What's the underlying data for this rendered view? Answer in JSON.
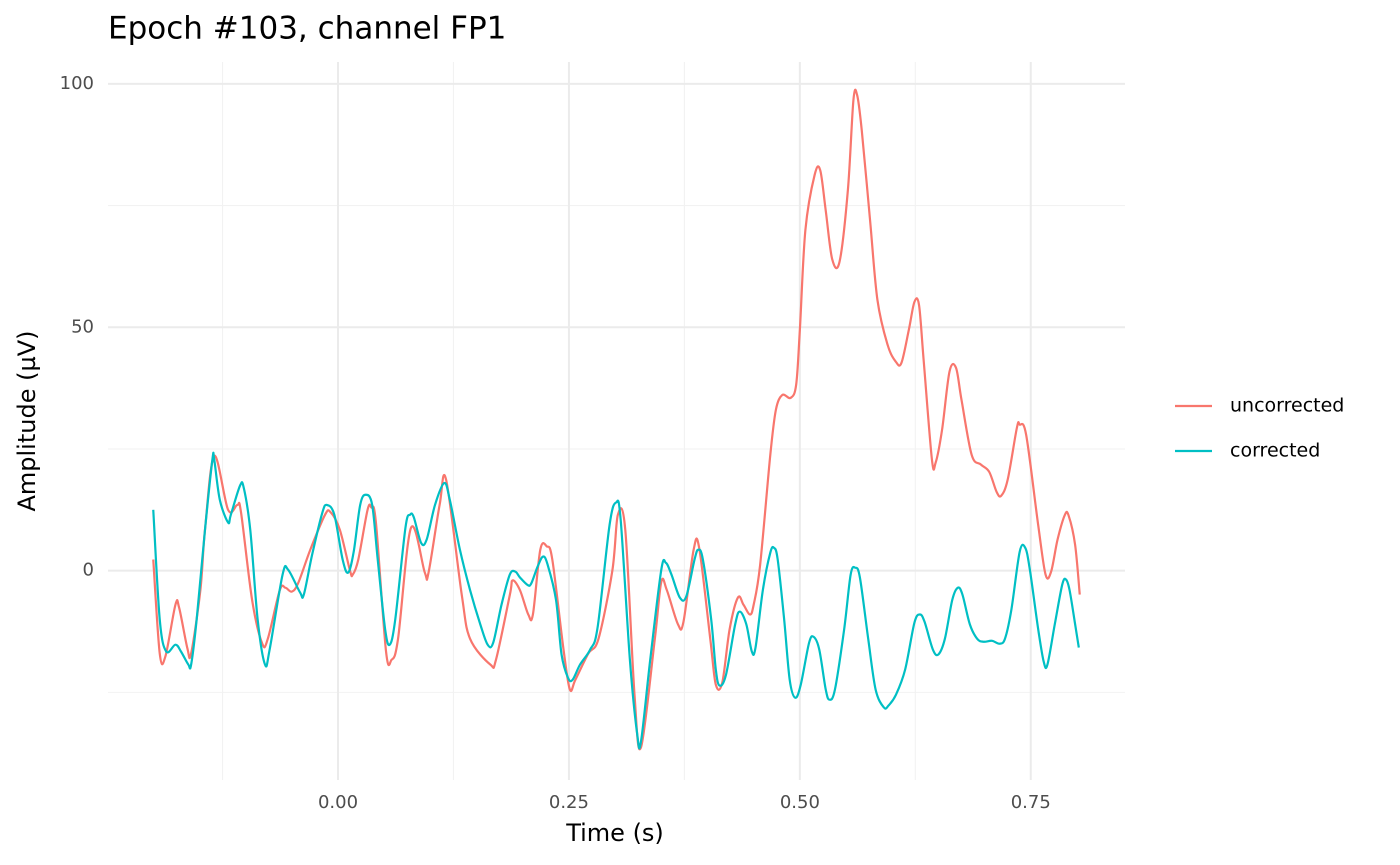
{
  "chart_data": {
    "type": "line",
    "title": "Epoch #103, channel FP1",
    "xlabel": "Time (s)",
    "ylabel": "Amplitude (µV)",
    "xlim": [
      -0.249,
      0.852
    ],
    "ylim": [
      -43,
      104.5
    ],
    "xticks": [
      {
        "value": 0,
        "label": "0.00"
      },
      0.25,
      {
        "value": 0.5,
        "label": "0.50"
      },
      0.75
    ],
    "yticks": [
      0,
      50,
      100
    ],
    "xminor": [
      -0.125,
      0.125,
      0.375,
      0.625
    ],
    "yminor": [
      -25,
      25,
      75
    ],
    "grid": true,
    "legend": "right",
    "series": [
      {
        "name": "uncorrected",
        "color": "#F8766D",
        "x": [
          -0.2,
          -0.193,
          -0.187,
          -0.176,
          -0.172,
          -0.163,
          -0.159,
          -0.149,
          -0.144,
          -0.134,
          -0.119,
          -0.109,
          -0.105,
          -0.093,
          -0.082,
          -0.076,
          -0.063,
          -0.057,
          -0.05,
          -0.043,
          -0.03,
          -0.014,
          -0.008,
          0.002,
          0.013,
          0.016,
          0.022,
          0.032,
          0.036,
          0.041,
          0.052,
          0.058,
          0.065,
          0.079,
          0.094,
          0.098,
          0.11,
          0.117,
          0.134,
          0.143,
          0.165,
          0.171,
          0.186,
          0.189,
          0.197,
          0.206,
          0.211,
          0.219,
          0.226,
          0.232,
          0.244,
          0.251,
          0.257,
          0.271,
          0.282,
          0.297,
          0.303,
          0.311,
          0.321,
          0.328,
          0.343,
          0.35,
          0.356,
          0.368,
          0.374,
          0.385,
          0.391,
          0.403,
          0.409,
          0.416,
          0.424,
          0.433,
          0.439,
          0.446,
          0.45,
          0.457,
          0.468,
          0.474,
          0.481,
          0.49,
          0.496,
          0.5,
          0.506,
          0.516,
          0.522,
          0.528,
          0.535,
          0.543,
          0.552,
          0.558,
          0.562,
          0.567,
          0.576,
          0.584,
          0.595,
          0.604,
          0.61,
          0.618,
          0.624,
          0.629,
          0.634,
          0.643,
          0.647,
          0.654,
          0.662,
          0.669,
          0.675,
          0.686,
          0.696,
          0.705,
          0.713,
          0.718,
          0.725,
          0.735,
          0.738,
          0.745,
          0.758,
          0.766,
          0.772,
          0.779,
          0.787,
          0.791,
          0.798,
          0.803
        ],
        "values": [
          2.3,
          -17,
          -17.7,
          -7,
          -7.6,
          -16,
          -17,
          -4,
          8.4,
          23.6,
          12.5,
          13.5,
          12,
          -6,
          -15,
          -14,
          -4,
          -3.5,
          -4.3,
          -2.5,
          4.3,
          11.5,
          12,
          8.4,
          0,
          -0.8,
          2.3,
          12.5,
          13,
          10,
          -16.6,
          -18.3,
          -14,
          8.8,
          -0.4,
          -0.4,
          13.5,
          18.7,
          -5,
          -14,
          -19.3,
          -18.3,
          -5,
          -2,
          -4,
          -9,
          -9,
          4.3,
          5,
          2.3,
          -16,
          -24.4,
          -22.4,
          -17,
          -14,
          0,
          11.5,
          8.4,
          -25.5,
          -36.3,
          -14,
          -2.3,
          -4,
          -11,
          -10.5,
          4.3,
          4.7,
          -14,
          -23.4,
          -23,
          -12,
          -5.5,
          -7,
          -9,
          -7,
          1.2,
          23.8,
          33,
          36.1,
          35.5,
          38.2,
          49.5,
          70,
          81.3,
          82.3,
          74,
          64,
          63.5,
          78.2,
          96.7,
          97.7,
          90.5,
          72,
          55.6,
          46.4,
          42.9,
          42.7,
          49.5,
          55.2,
          54.6,
          43.3,
          22.8,
          22.2,
          29,
          40.9,
          41.7,
          35.1,
          23.8,
          21.8,
          20.3,
          16.2,
          15.4,
          18.7,
          29.4,
          30,
          27.9,
          9.4,
          -0.8,
          -0.2,
          6.4,
          11.5,
          11.3,
          5.3,
          -4.9
        ]
      },
      {
        "name": "corrected",
        "color": "#00BFC4",
        "x": [
          -0.2,
          -0.193,
          -0.186,
          -0.176,
          -0.17,
          -0.162,
          -0.159,
          -0.153,
          -0.144,
          -0.136,
          -0.134,
          -0.128,
          -0.119,
          -0.116,
          -0.106,
          -0.102,
          -0.095,
          -0.087,
          -0.079,
          -0.074,
          -0.06,
          -0.054,
          -0.041,
          -0.037,
          -0.028,
          -0.017,
          -0.012,
          -0.004,
          0.005,
          0.011,
          0.017,
          0.024,
          0.03,
          0.037,
          0.043,
          0.051,
          0.056,
          0.062,
          0.073,
          0.078,
          0.082,
          0.09,
          0.096,
          0.105,
          0.115,
          0.121,
          0.132,
          0.143,
          0.154,
          0.162,
          0.168,
          0.177,
          0.186,
          0.192,
          0.197,
          0.205,
          0.209,
          0.216,
          0.222,
          0.227,
          0.236,
          0.242,
          0.249,
          0.254,
          0.262,
          0.273,
          0.281,
          0.294,
          0.301,
          0.306,
          0.316,
          0.324,
          0.328,
          0.338,
          0.35,
          0.355,
          0.361,
          0.37,
          0.377,
          0.386,
          0.39,
          0.395,
          0.404,
          0.409,
          0.413,
          0.42,
          0.43,
          0.435,
          0.442,
          0.448,
          0.452,
          0.46,
          0.468,
          0.472,
          0.476,
          0.483,
          0.489,
          0.495,
          0.501,
          0.51,
          0.515,
          0.521,
          0.528,
          0.532,
          0.538,
          0.548,
          0.555,
          0.56,
          0.565,
          0.574,
          0.582,
          0.591,
          0.596,
          0.604,
          0.614,
          0.624,
          0.63,
          0.635,
          0.644,
          0.65,
          0.657,
          0.665,
          0.671,
          0.676,
          0.684,
          0.692,
          0.699,
          0.708,
          0.716,
          0.722,
          0.729,
          0.738,
          0.744,
          0.749,
          0.758,
          0.764,
          0.768,
          0.776,
          0.784,
          0.788,
          0.792,
          0.798,
          0.802
        ],
        "values": [
          12.5,
          -10,
          -16.6,
          -15.2,
          -16.6,
          -19.3,
          -19.3,
          -10,
          8.4,
          22.8,
          22.8,
          14.6,
          9.9,
          11.5,
          17.5,
          17,
          8.4,
          -10,
          -19.3,
          -16.2,
          -0.8,
          0.2,
          -4.5,
          -4.9,
          3.3,
          11.9,
          13.5,
          11.5,
          2.3,
          -0.4,
          3.9,
          13.5,
          15.6,
          13.5,
          2.3,
          -12,
          -15.2,
          -10,
          8.8,
          11.5,
          11,
          5.7,
          6.4,
          13.5,
          18,
          14.6,
          4.3,
          -4,
          -11,
          -15.2,
          -14.8,
          -7,
          -0.8,
          -0.2,
          -1.4,
          -2.9,
          -2.7,
          0.8,
          2.9,
          1.2,
          -6,
          -17.2,
          -22,
          -22.4,
          -19.3,
          -16.2,
          -11.7,
          9.4,
          14,
          10.5,
          -18.3,
          -33.7,
          -35.1,
          -18.3,
          0.2,
          1.6,
          -0.8,
          -5.5,
          -5.3,
          2.3,
          4.3,
          2.3,
          -10,
          -20.3,
          -23.6,
          -21.4,
          -11,
          -8.4,
          -11,
          -16.6,
          -15.8,
          -3.9,
          3.7,
          4.7,
          2.3,
          -10,
          -22.4,
          -26.1,
          -23.4,
          -14.8,
          -13.6,
          -16.2,
          -24.4,
          -26.5,
          -24.4,
          -12,
          -0.8,
          0.6,
          -1.4,
          -14,
          -24.4,
          -28.1,
          -27.7,
          -25.5,
          -20.3,
          -10.7,
          -9,
          -10.5,
          -16.2,
          -17.2,
          -14,
          -6,
          -3.5,
          -4.9,
          -11,
          -14,
          -14.6,
          -14.4,
          -15,
          -14,
          -8,
          3.9,
          4.7,
          0.2,
          -12,
          -18.7,
          -19.3,
          -11,
          -2.9,
          -1.8,
          -4,
          -11,
          -15.8
        ]
      }
    ]
  }
}
